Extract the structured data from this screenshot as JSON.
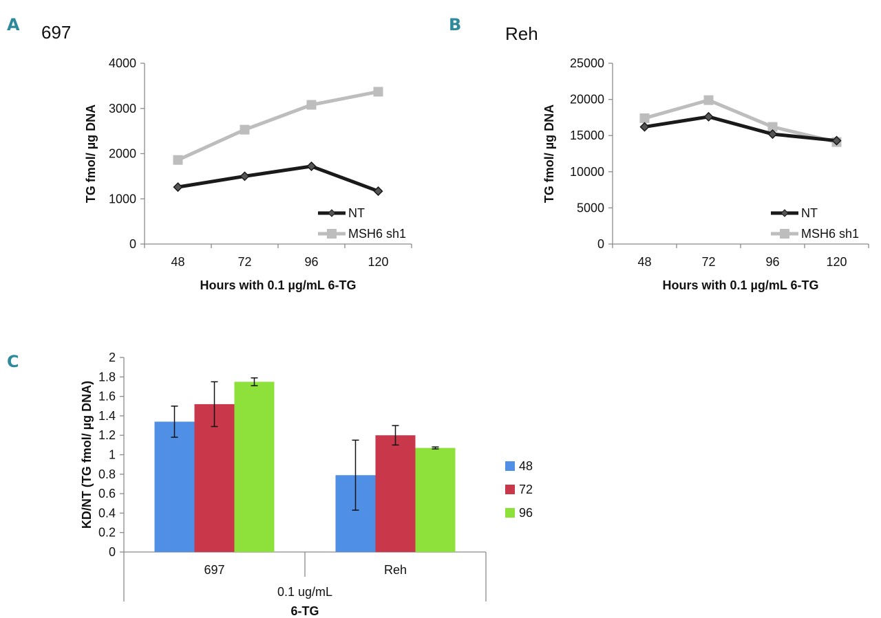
{
  "chart_data": [
    {
      "panel": "A",
      "type": "line",
      "title": "697",
      "xlabel": "Hours with 0.1 µg/mL 6-TG",
      "ylabel": "TG fmol/ µg DNA",
      "categories": [
        "48",
        "72",
        "96",
        "120"
      ],
      "ylim": [
        0,
        4000
      ],
      "yticks": [
        "0",
        "1000",
        "2000",
        "3000",
        "4000"
      ],
      "grid": false,
      "legend_position": "bottom-right",
      "series": [
        {
          "name": "NT",
          "color": "#1a1a1a",
          "marker": "diamond",
          "values": [
            1260,
            1500,
            1720,
            1170
          ]
        },
        {
          "name": "MSH6 sh1",
          "color": "#bdbdbd",
          "marker": "square",
          "values": [
            1860,
            2530,
            3080,
            3370
          ]
        }
      ]
    },
    {
      "panel": "B",
      "type": "line",
      "title": "Reh",
      "xlabel": "Hours with 0.1 µg/mL 6-TG",
      "ylabel": "TG fmol/ µg DNA",
      "categories": [
        "48",
        "72",
        "96",
        "120"
      ],
      "ylim": [
        0,
        25000
      ],
      "yticks": [
        "0",
        "5000",
        "10000",
        "15000",
        "20000",
        "25000"
      ],
      "grid": false,
      "legend_position": "bottom-right",
      "series": [
        {
          "name": "NT",
          "color": "#1a1a1a",
          "marker": "diamond",
          "values": [
            16200,
            17600,
            15200,
            14300
          ]
        },
        {
          "name": "MSH6 sh1",
          "color": "#bdbdbd",
          "marker": "square",
          "values": [
            17400,
            19900,
            16200,
            14100
          ]
        }
      ]
    },
    {
      "panel": "C",
      "type": "bar",
      "title": "",
      "xlabel": "0.1 ug/mL",
      "xlabel2": "6-TG",
      "ylabel": "KD/NT (TG fmol/ µg DNA)",
      "categories": [
        "697",
        "Reh"
      ],
      "ylim": [
        0,
        2
      ],
      "yticks": [
        "0",
        "0.2",
        "0.4",
        "0.6",
        "0.8",
        "1",
        "1.2",
        "1.4",
        "1.6",
        "1.8",
        "2"
      ],
      "grid": false,
      "legend_position": "right",
      "series": [
        {
          "name": "48",
          "color": "#4f8fe6",
          "values": [
            1.34,
            0.79
          ],
          "error": [
            0.16,
            0.36
          ]
        },
        {
          "name": "72",
          "color": "#c8374a",
          "values": [
            1.52,
            1.2
          ],
          "error": [
            0.23,
            0.1
          ]
        },
        {
          "name": "96",
          "color": "#8ee03a",
          "values": [
            1.75,
            1.07
          ],
          "error": [
            0.04,
            0.01
          ]
        }
      ]
    }
  ]
}
